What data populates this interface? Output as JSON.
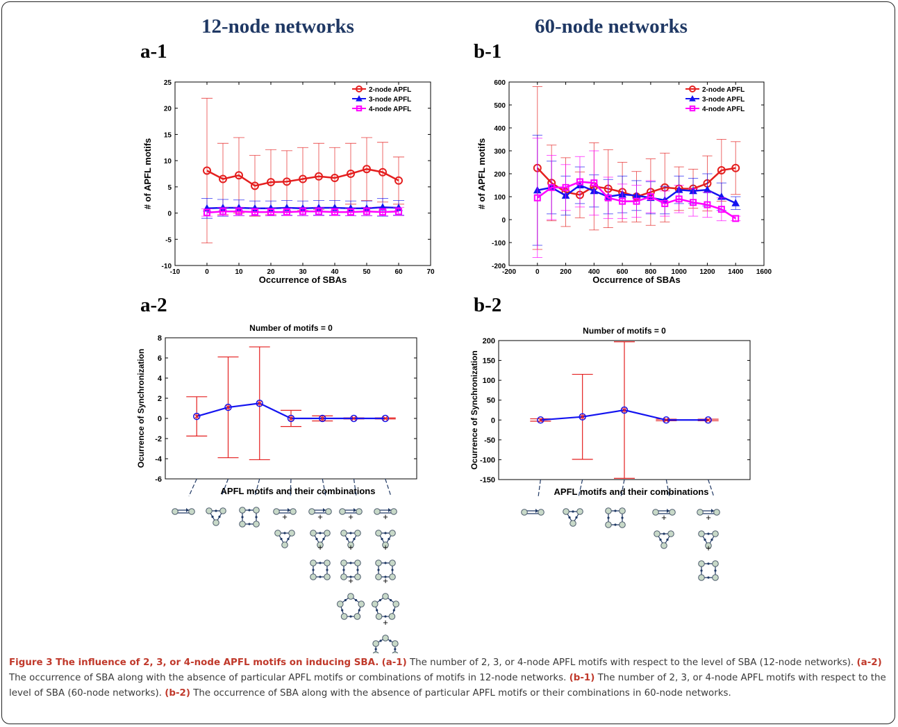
{
  "columns": {
    "left_title": "12-node networks",
    "right_title": "60-node networks"
  },
  "panel_labels": {
    "a1": "a-1",
    "a2": "a-2",
    "b1": "b-1",
    "b2": "b-2"
  },
  "colors": {
    "red": "#e41f1f",
    "blue": "#1414f0",
    "magenta": "#ff00ff",
    "node_fill": "#c8d9c8",
    "navy": "#1f3864"
  },
  "chart_data": [
    {
      "id": "a-1",
      "type": "line",
      "xlabel": "Occurrence of SBAs",
      "ylabel": "# of APFL motifs",
      "xlim": [
        -10,
        70
      ],
      "ylim": [
        -10,
        25
      ],
      "xticks": [
        -10,
        0,
        10,
        20,
        30,
        40,
        50,
        60,
        70
      ],
      "yticks": [
        -10,
        -5,
        0,
        5,
        10,
        15,
        20,
        25
      ],
      "x": [
        0,
        5,
        10,
        15,
        20,
        25,
        30,
        35,
        40,
        45,
        50,
        55,
        60
      ],
      "series": [
        {
          "name": "2-node APFL",
          "color": "#e41f1f",
          "marker": "circle",
          "values": [
            8.1,
            6.5,
            7.2,
            5.2,
            5.9,
            6.0,
            6.5,
            7.0,
            6.7,
            7.5,
            8.4,
            7.8,
            6.2
          ],
          "err": [
            13.8,
            6.8,
            7.2,
            5.8,
            6.2,
            5.9,
            6.0,
            6.3,
            5.8,
            5.8,
            6.0,
            5.7,
            4.5
          ]
        },
        {
          "name": "3-node APFL",
          "color": "#1414f0",
          "marker": "triangle",
          "values": [
            0.9,
            1.0,
            1.0,
            0.9,
            0.9,
            1.0,
            0.9,
            1.0,
            1.0,
            0.9,
            0.9,
            1.1,
            1.0
          ],
          "err": [
            1.9,
            1.6,
            1.5,
            1.4,
            1.4,
            1.4,
            1.4,
            1.4,
            1.4,
            1.4,
            1.4,
            1.7,
            1.4
          ]
        },
        {
          "name": "4-node APFL",
          "color": "#ff00ff",
          "marker": "square",
          "values": [
            0.1,
            0.3,
            0.3,
            0.2,
            0.2,
            0.2,
            0.3,
            0.3,
            0.2,
            0.2,
            0.3,
            0.2,
            0.3
          ],
          "err": [
            0.7,
            0.8,
            0.8,
            0.7,
            0.7,
            0.7,
            0.8,
            0.8,
            0.7,
            0.7,
            0.8,
            0.7,
            0.8
          ]
        }
      ]
    },
    {
      "id": "b-1",
      "type": "line",
      "xlabel": "Occurrence of SBAs",
      "ylabel": "# of APFL motifs",
      "xlim": [
        -200,
        1600
      ],
      "ylim": [
        -200,
        600
      ],
      "xticks": [
        -200,
        0,
        200,
        400,
        600,
        800,
        1000,
        1200,
        1400,
        1600
      ],
      "yticks": [
        -200,
        -100,
        0,
        100,
        200,
        300,
        400,
        500,
        600
      ],
      "x": [
        0,
        100,
        200,
        300,
        400,
        500,
        600,
        700,
        800,
        900,
        1000,
        1100,
        1200,
        1300,
        1400
      ],
      "series": [
        {
          "name": "2-node APFL",
          "color": "#e41f1f",
          "marker": "circle",
          "values": [
            225,
            160,
            120,
            108,
            145,
            135,
            120,
            100,
            120,
            140,
            135,
            135,
            158,
            215,
            225
          ],
          "err": [
            355,
            165,
            150,
            100,
            190,
            170,
            130,
            110,
            145,
            150,
            95,
            85,
            120,
            135,
            115
          ]
        },
        {
          "name": "3-node APFL",
          "color": "#1414f0",
          "marker": "triangle",
          "values": [
            128,
            140,
            105,
            150,
            125,
            100,
            110,
            105,
            95,
            85,
            130,
            125,
            130,
            100,
            72
          ],
          "err": [
            240,
            115,
            85,
            80,
            70,
            75,
            80,
            65,
            70,
            60,
            60,
            55,
            70,
            60,
            28
          ]
        },
        {
          "name": "4-node APFL",
          "color": "#ff00ff",
          "marker": "square",
          "values": [
            95,
            140,
            140,
            165,
            160,
            95,
            80,
            80,
            100,
            70,
            90,
            75,
            65,
            45,
            5
          ],
          "err": [
            260,
            140,
            100,
            110,
            140,
            90,
            75,
            70,
            70,
            55,
            60,
            60,
            55,
            50,
            10
          ]
        }
      ]
    },
    {
      "id": "a-2",
      "type": "line",
      "title": "Number of motifs = 0",
      "xlabel": "APFL motifs and their combinations",
      "ylabel": "Ocurrence of Synchronization",
      "ylim": [
        -6,
        8
      ],
      "yticks": [
        -6,
        -4,
        -2,
        0,
        2,
        4,
        6,
        8
      ],
      "categories": [
        "2",
        "3",
        "4",
        "2+3",
        "2+3+4",
        "2+3+4+5",
        "2+3+4+5+6"
      ],
      "values": [
        0.2,
        1.1,
        1.5,
        0.0,
        0.0,
        0.0,
        0.0
      ],
      "err": [
        1.95,
        5.0,
        5.6,
        0.8,
        0.25,
        0.05,
        0.05
      ]
    },
    {
      "id": "b-2",
      "type": "line",
      "title": "Number of motifs = 0",
      "xlabel": "APFL motifs and their combinations",
      "ylabel": "Ocurrence of Synchronization",
      "ylim": [
        -150,
        200
      ],
      "yticks": [
        -150,
        -100,
        -50,
        0,
        50,
        100,
        150,
        200
      ],
      "categories": [
        "2",
        "3",
        "4",
        "2+3",
        "2+3+4"
      ],
      "values": [
        0,
        8,
        25,
        0,
        0
      ],
      "err": [
        3,
        107,
        172,
        2,
        2
      ]
    }
  ],
  "motif_stack": {
    "plus": "+"
  },
  "caption": {
    "lead": "Figure 3 The influence of 2, 3, or 4-node APFL motifs on inducing SBA.",
    "parts": [
      {
        "tag": "(a-1)",
        "text": " The number of 2, 3, or 4-node APFL motifs with respect to the level of SBA (12-node networks). "
      },
      {
        "tag": "(a-2)",
        "text": " The occurrence of SBA along with the absence of particular APFL motifs or combinations of motifs in 12-node networks. "
      },
      {
        "tag": "(b-1)",
        "text": " The number of 2, 3, or 4-node APFL motifs with respect to the level of SBA (60-node networks). "
      },
      {
        "tag": "(b-2)",
        "text": " The occurrence of SBA along with the absence of particular APFL motifs or their combinations in 60-node networks."
      }
    ]
  }
}
